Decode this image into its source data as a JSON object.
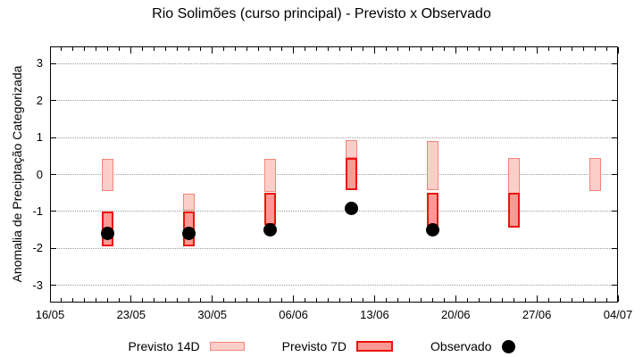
{
  "title": "Rio Solimões (curso principal) - Previsto x Observado",
  "chart_data": {
    "type": "bar",
    "title": "Rio Solimões (curso principal) - Previsto x Observado",
    "xlabel": "",
    "ylabel": "Anomalia de Preciptação Categorizada",
    "ylim": [
      -3.5,
      3.5
    ],
    "y_ticks": [
      3,
      2,
      1,
      0,
      -1,
      -2,
      -3
    ],
    "grid": "horizontal dotted gridlines at integer y values",
    "legend_position": "bottom",
    "colors": {
      "grid": "#9b9b9b",
      "axis": "#000000",
      "background": "#ffffff"
    },
    "x_axis": {
      "tick_labels": [
        "16/05",
        "23/05",
        "30/05",
        "06/06",
        "13/06",
        "20/06",
        "27/06",
        "04/07"
      ],
      "tick_days": [
        0,
        7,
        14,
        21,
        28,
        35,
        42,
        49
      ],
      "minor_tick_every_days": 1,
      "total_days": 49
    },
    "series": [
      {
        "id": "previsto-14d",
        "name": "Previsto 14D",
        "type": "range_bar",
        "fill": "#fbcfc8",
        "border": "#f2857b",
        "points": [
          {
            "date": "21/05",
            "day": 5,
            "high": 0.43,
            "low": -0.45
          },
          {
            "date": "28/05",
            "day": 12,
            "high": -0.53,
            "low": -0.98
          },
          {
            "date": "04/06",
            "day": 19,
            "high": 0.43,
            "low": -0.46
          },
          {
            "date": "11/06",
            "day": 26,
            "high": 0.93,
            "low": 0.44
          },
          {
            "date": "18/06",
            "day": 33,
            "high": 0.9,
            "low": -0.43
          },
          {
            "date": "25/06",
            "day": 40,
            "high": 0.44,
            "low": -0.51
          },
          {
            "date": "02/07",
            "day": 47,
            "high": 0.44,
            "low": -0.44
          }
        ]
      },
      {
        "id": "previsto-7d",
        "name": "Previsto 7D",
        "type": "range_bar",
        "fill": "#fb9a94",
        "border": "#ed1410",
        "points": [
          {
            "date": "21/05",
            "day": 5,
            "high": -1.0,
            "low": -1.95
          },
          {
            "date": "28/05",
            "day": 12,
            "high": -1.0,
            "low": -1.94
          },
          {
            "date": "04/06",
            "day": 19,
            "high": -0.5,
            "low": -1.37
          },
          {
            "date": "11/06",
            "day": 26,
            "high": 0.44,
            "low": -0.43
          },
          {
            "date": "18/06",
            "day": 33,
            "high": -0.5,
            "low": -1.4
          },
          {
            "date": "25/06",
            "day": 40,
            "high": -0.5,
            "low": -1.45
          }
        ]
      },
      {
        "id": "observado",
        "name": "Observado",
        "type": "scatter",
        "color": "#000000",
        "points": [
          {
            "date": "21/05",
            "day": 5,
            "value": -1.6
          },
          {
            "date": "28/05",
            "day": 12,
            "value": -1.6
          },
          {
            "date": "04/06",
            "day": 19,
            "value": -1.51
          },
          {
            "date": "11/06",
            "day": 26,
            "value": -0.93
          },
          {
            "date": "18/06",
            "day": 33,
            "value": -1.51
          }
        ]
      }
    ]
  }
}
